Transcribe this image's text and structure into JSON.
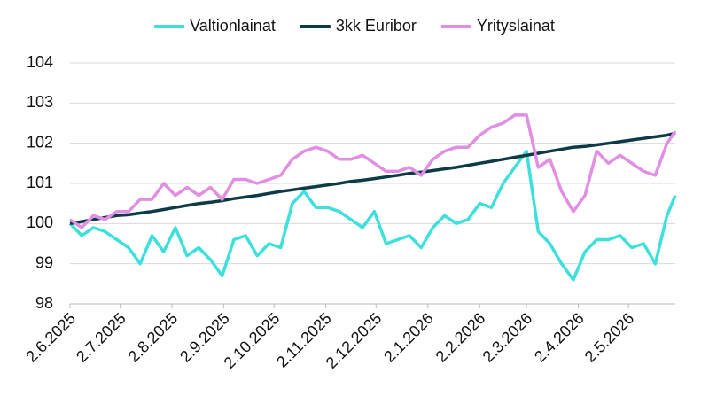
{
  "chart_data": {
    "type": "line",
    "x": [
      "2.6.2025",
      "9.6.2025",
      "16.6.2025",
      "23.6.2025",
      "30.6.2025",
      "7.7.2025",
      "14.7.2025",
      "21.7.2025",
      "28.7.2025",
      "4.8.2025",
      "11.8.2025",
      "18.8.2025",
      "25.8.2025",
      "1.9.2025",
      "8.9.2025",
      "15.9.2025",
      "22.9.2025",
      "29.9.2025",
      "6.10.2025",
      "13.10.2025",
      "20.10.2025",
      "27.10.2025",
      "3.11.2025",
      "10.11.2025",
      "17.11.2025",
      "24.11.2025",
      "1.12.2025",
      "8.12.2025",
      "15.12.2025",
      "22.12.2025",
      "29.12.2025",
      "5.1.2026",
      "12.1.2026",
      "19.1.2026",
      "26.1.2026",
      "2.2.2026",
      "9.2.2026",
      "16.2.2026",
      "23.2.2026",
      "2.3.2026",
      "9.3.2026",
      "16.3.2026",
      "23.3.2026",
      "30.3.2026",
      "6.4.2026",
      "13.4.2026",
      "20.4.2026",
      "27.4.2026",
      "4.5.2026",
      "11.5.2026",
      "18.5.2026",
      "25.5.2026",
      "30.5.2026"
    ],
    "series": [
      {
        "name": "Valtionlainat",
        "color": "#3ee0dc",
        "values": [
          100.0,
          99.7,
          99.9,
          99.8,
          99.6,
          99.4,
          99.0,
          99.7,
          99.3,
          99.9,
          99.2,
          99.4,
          99.1,
          98.7,
          99.6,
          99.7,
          99.2,
          99.5,
          99.4,
          100.5,
          100.8,
          100.4,
          100.4,
          100.3,
          100.1,
          99.9,
          100.3,
          99.5,
          99.6,
          99.7,
          99.4,
          99.9,
          100.2,
          100.0,
          100.1,
          100.5,
          100.4,
          101.0,
          101.4,
          101.8,
          99.8,
          99.5,
          99.0,
          98.6,
          99.3,
          99.6,
          99.6,
          99.7,
          99.4,
          99.5,
          99.0,
          100.2,
          100.7
        ]
      },
      {
        "name": "3kk Euribor",
        "color": "#0d3a47",
        "values": [
          100.0,
          100.05,
          100.1,
          100.15,
          100.2,
          100.22,
          100.26,
          100.3,
          100.35,
          100.4,
          100.45,
          100.5,
          100.53,
          100.57,
          100.62,
          100.66,
          100.7,
          100.75,
          100.8,
          100.84,
          100.88,
          100.92,
          100.96,
          101.0,
          101.05,
          101.08,
          101.12,
          101.16,
          101.2,
          101.25,
          101.28,
          101.32,
          101.36,
          101.4,
          101.45,
          101.5,
          101.55,
          101.6,
          101.65,
          101.7,
          101.75,
          101.8,
          101.85,
          101.9,
          101.92,
          101.96,
          102.0,
          102.04,
          102.08,
          102.12,
          102.16,
          102.2,
          102.25
        ]
      },
      {
        "name": "Yrityslainat",
        "color": "#e08fe3",
        "values": [
          100.1,
          99.9,
          100.2,
          100.1,
          100.3,
          100.3,
          100.6,
          100.6,
          101.0,
          100.7,
          100.9,
          100.7,
          100.9,
          100.6,
          101.1,
          101.1,
          101.0,
          101.1,
          101.2,
          101.6,
          101.8,
          101.9,
          101.8,
          101.6,
          101.6,
          101.7,
          101.5,
          101.3,
          101.3,
          101.4,
          101.2,
          101.6,
          101.8,
          101.9,
          101.9,
          102.2,
          102.4,
          102.5,
          102.7,
          102.7,
          101.4,
          101.6,
          100.8,
          100.3,
          100.7,
          101.8,
          101.5,
          101.7,
          101.5,
          101.3,
          101.2,
          102.0,
          102.3
        ]
      }
    ],
    "xlim": [
      "2.6.2025",
      "30.5.2026"
    ],
    "xticks": [
      "2.6.2025",
      "2.7.2025",
      "2.8.2025",
      "2.9.2025",
      "2.10.2025",
      "2.11.2025",
      "2.12.2025",
      "2.1.2026",
      "2.2.2026",
      "2.3.2026",
      "2.4.2026",
      "2.5.2026"
    ],
    "ylim": [
      98,
      104
    ],
    "yticks": [
      98,
      99,
      100,
      101,
      102,
      103,
      104
    ],
    "grid": true,
    "legend": "top"
  }
}
